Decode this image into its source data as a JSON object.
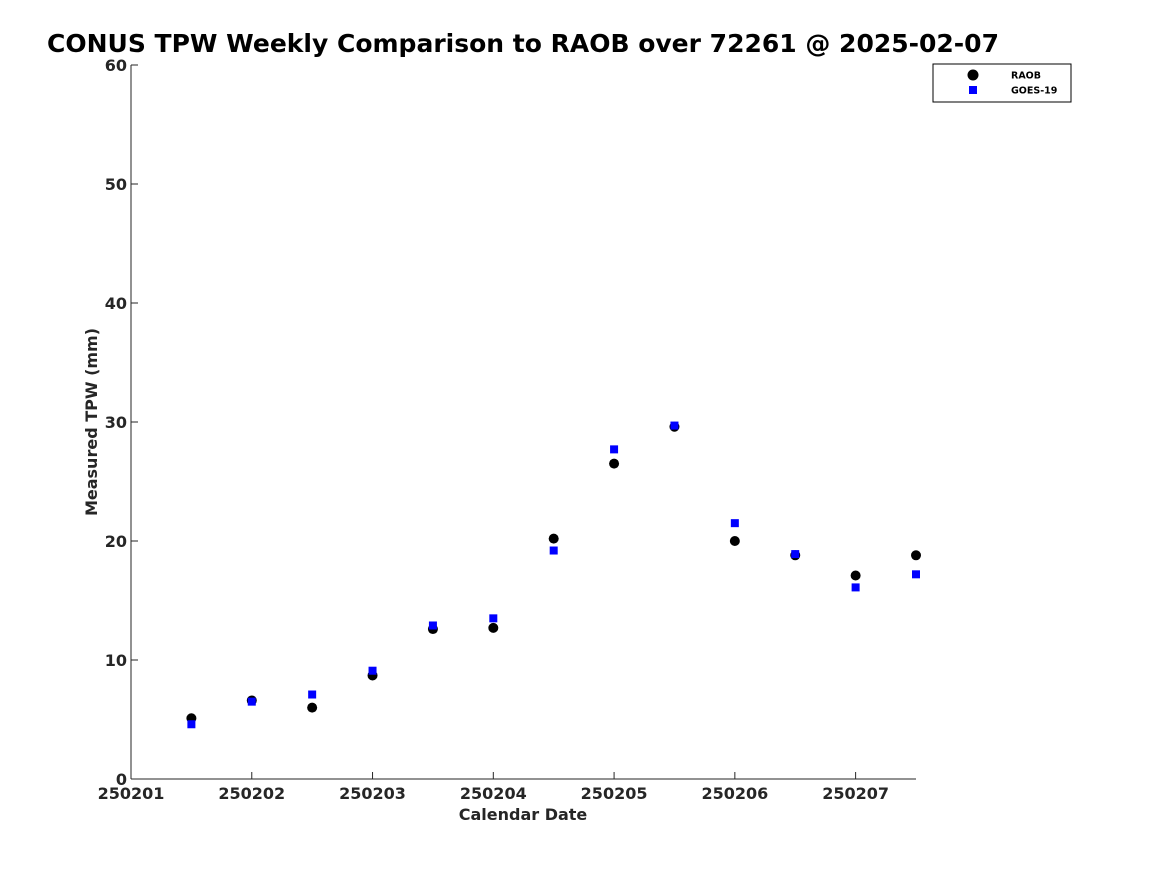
{
  "chart_data": {
    "type": "scatter",
    "title": "CONUS TPW Weekly Comparison to RAOB over 72261 @ 2025-02-07",
    "xlabel": "Calendar Date",
    "ylabel": "Measured TPW (mm)",
    "xlim": [
      1,
      7.5
    ],
    "ylim": [
      0,
      60
    ],
    "xticks": [
      1,
      2,
      3,
      4,
      5,
      6,
      7
    ],
    "xtick_labels": [
      "250201",
      "250202",
      "250203",
      "250204",
      "250205",
      "250206",
      "250207"
    ],
    "yticks": [
      0,
      10,
      20,
      30,
      40,
      50,
      60
    ],
    "ytick_labels": [
      "0",
      "10",
      "20",
      "30",
      "40",
      "50",
      "60"
    ],
    "grid": false,
    "legend_position": "top-right",
    "x": [
      1.5,
      2.0,
      2.5,
      3.0,
      3.5,
      4.0,
      4.5,
      5.0,
      5.5,
      6.0,
      6.5,
      7.0,
      7.5
    ],
    "series": [
      {
        "name": "RAOB",
        "marker": "circle",
        "color": "#000000",
        "values": [
          5.1,
          6.6,
          6.0,
          8.7,
          12.6,
          12.7,
          20.2,
          26.5,
          29.6,
          20.0,
          18.8,
          17.1,
          18.8
        ]
      },
      {
        "name": "GOES-19",
        "marker": "square",
        "color": "#0000ff",
        "values": [
          4.6,
          6.5,
          7.1,
          9.1,
          12.9,
          13.5,
          19.2,
          27.7,
          29.7,
          21.5,
          18.9,
          16.1,
          17.2
        ]
      }
    ]
  }
}
